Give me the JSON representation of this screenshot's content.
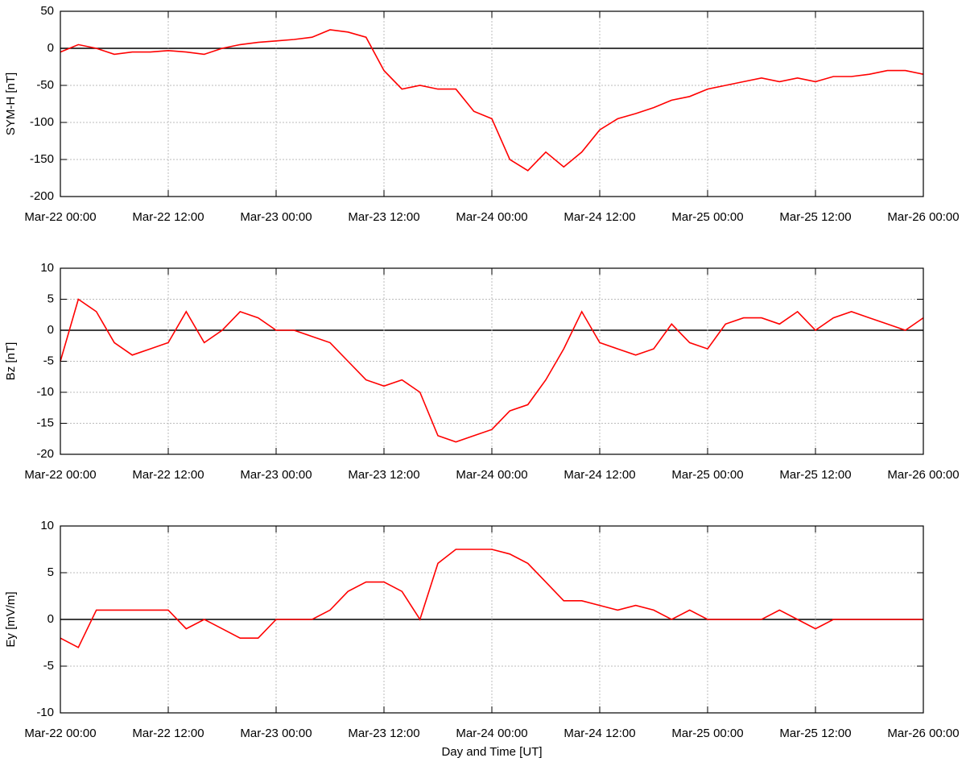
{
  "chart_data": [
    {
      "type": "line",
      "ylabel": "SYM-H [nT]",
      "x": [
        0,
        2,
        4,
        6,
        8,
        10,
        12,
        14,
        16,
        18,
        20,
        22,
        24,
        26,
        28,
        30,
        32,
        34,
        36,
        38,
        40,
        42,
        44,
        46,
        48,
        50,
        52,
        54,
        56,
        58,
        60,
        62,
        64,
        66,
        68,
        70,
        72,
        74,
        76,
        78,
        80,
        82,
        84,
        86,
        88,
        90,
        92,
        94,
        96
      ],
      "series": [
        {
          "name": "SYM-H",
          "color": "#ff0000",
          "values": [
            -5,
            5,
            0,
            -8,
            -5,
            -5,
            -3,
            -5,
            -8,
            0,
            5,
            8,
            10,
            12,
            15,
            25,
            22,
            15,
            -30,
            -55,
            -50,
            -55,
            -55,
            -85,
            -95,
            -150,
            -165,
            -140,
            -160,
            -140,
            -110,
            -95,
            -88,
            -80,
            -70,
            -65,
            -55,
            -50,
            -45,
            -40,
            -45,
            -40,
            -45,
            -38,
            -38,
            -35,
            -30,
            -30,
            -35
          ]
        }
      ],
      "xlim": [
        0,
        96
      ],
      "xticks": [
        {
          "value": 0,
          "label": "Mar-22 00:00"
        },
        {
          "value": 12,
          "label": "Mar-22 12:00"
        },
        {
          "value": 24,
          "label": "Mar-23 00:00"
        },
        {
          "value": 36,
          "label": "Mar-23 12:00"
        },
        {
          "value": 48,
          "label": "Mar-24 00:00"
        },
        {
          "value": 60,
          "label": "Mar-24 12:00"
        },
        {
          "value": 72,
          "label": "Mar-25 00:00"
        },
        {
          "value": 84,
          "label": "Mar-25 12:00"
        },
        {
          "value": 96,
          "label": "Mar-26 00:00"
        }
      ],
      "ylim": [
        -200,
        50
      ],
      "yticks": [
        -200,
        -150,
        -100,
        -50,
        0,
        50
      ],
      "grid": true
    },
    {
      "type": "line",
      "ylabel": "Bz [nT]",
      "x": [
        0,
        2,
        4,
        6,
        8,
        10,
        12,
        14,
        16,
        18,
        20,
        22,
        24,
        26,
        28,
        30,
        32,
        34,
        36,
        38,
        40,
        42,
        44,
        46,
        48,
        50,
        52,
        54,
        56,
        58,
        60,
        62,
        64,
        66,
        68,
        70,
        72,
        74,
        76,
        78,
        80,
        82,
        84,
        86,
        88,
        90,
        92,
        94,
        96
      ],
      "series": [
        {
          "name": "Bz",
          "color": "#ff0000",
          "values": [
            -5,
            5,
            3,
            -2,
            -4,
            -3,
            -2,
            3,
            -2,
            0,
            3,
            2,
            0,
            0,
            -1,
            -2,
            -5,
            -8,
            -9,
            -8,
            -10,
            -17,
            -18,
            -17,
            -16,
            -13,
            -12,
            -8,
            -3,
            3,
            -2,
            -3,
            -4,
            -3,
            1,
            -2,
            -3,
            1,
            2,
            2,
            1,
            3,
            0,
            2,
            3,
            2,
            1,
            0,
            2
          ]
        }
      ],
      "xlim": [
        0,
        96
      ],
      "xticks": [
        {
          "value": 0,
          "label": "Mar-22 00:00"
        },
        {
          "value": 12,
          "label": "Mar-22 12:00"
        },
        {
          "value": 24,
          "label": "Mar-23 00:00"
        },
        {
          "value": 36,
          "label": "Mar-23 12:00"
        },
        {
          "value": 48,
          "label": "Mar-24 00:00"
        },
        {
          "value": 60,
          "label": "Mar-24 12:00"
        },
        {
          "value": 72,
          "label": "Mar-25 00:00"
        },
        {
          "value": 84,
          "label": "Mar-25 12:00"
        },
        {
          "value": 96,
          "label": "Mar-26 00:00"
        }
      ],
      "ylim": [
        -20,
        10
      ],
      "yticks": [
        -20,
        -15,
        -10,
        -5,
        0,
        5,
        10
      ],
      "grid": true
    },
    {
      "type": "line",
      "ylabel": "Ey [mV/m]",
      "xlabel": "Day and Time [UT]",
      "x": [
        0,
        2,
        4,
        6,
        8,
        10,
        12,
        14,
        16,
        18,
        20,
        22,
        24,
        26,
        28,
        30,
        32,
        34,
        36,
        38,
        40,
        42,
        44,
        46,
        48,
        50,
        52,
        54,
        56,
        58,
        60,
        62,
        64,
        66,
        68,
        70,
        72,
        74,
        76,
        78,
        80,
        82,
        84,
        86,
        88,
        90,
        92,
        94,
        96
      ],
      "series": [
        {
          "name": "Ey",
          "color": "#ff0000",
          "values": [
            -2,
            -3,
            1,
            1,
            1,
            1,
            1,
            -1,
            0,
            -1,
            -2,
            -2,
            0,
            0,
            0,
            1,
            3,
            4,
            4,
            3,
            0,
            6,
            7.5,
            7.5,
            7.5,
            7,
            6,
            4,
            2,
            2,
            1.5,
            1,
            1.5,
            1,
            0,
            1,
            0,
            0,
            0,
            0,
            1,
            0,
            -1,
            0,
            0,
            0,
            0,
            0,
            0
          ]
        }
      ],
      "xlim": [
        0,
        96
      ],
      "xticks": [
        {
          "value": 0,
          "label": "Mar-22 00:00"
        },
        {
          "value": 12,
          "label": "Mar-22 12:00"
        },
        {
          "value": 24,
          "label": "Mar-23 00:00"
        },
        {
          "value": 36,
          "label": "Mar-23 12:00"
        },
        {
          "value": 48,
          "label": "Mar-24 00:00"
        },
        {
          "value": 60,
          "label": "Mar-24 12:00"
        },
        {
          "value": 72,
          "label": "Mar-25 00:00"
        },
        {
          "value": 84,
          "label": "Mar-25 12:00"
        },
        {
          "value": 96,
          "label": "Mar-26 00:00"
        }
      ],
      "ylim": [
        -10,
        10
      ],
      "yticks": [
        -10,
        -5,
        0,
        5,
        10
      ],
      "grid": true
    }
  ]
}
